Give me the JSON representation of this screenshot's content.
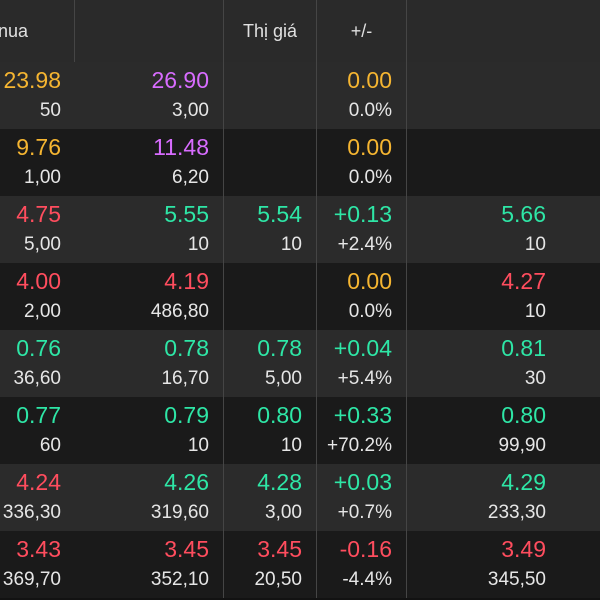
{
  "header": {
    "col_buy": "nua",
    "col_price": "Thị giá",
    "col_change": "+/-"
  },
  "colors": {
    "up": "#2ee6a6",
    "down": "#ff4d5e",
    "ref": "#f5b531",
    "ceil": "#d86cff",
    "neutral": "#e6e6e6",
    "header_bg": "#2a2a2a",
    "row_bg_a": "#2b2b2b",
    "row_bg_b": "#1a1a1a"
  },
  "rows": [
    {
      "buy1": {
        "price": "23.98",
        "vol": "50",
        "color": "#f5b531"
      },
      "sell1": {
        "price": "26.90",
        "vol": "3,00",
        "color": "#d86cff"
      },
      "match": {
        "price": "",
        "vol": "",
        "color": "#e6e6e6"
      },
      "change": {
        "value": "0.00",
        "pct": "0.0%",
        "color": "#f5b531"
      },
      "last": {
        "price": "",
        "vol": "",
        "color": "#e6e6e6"
      }
    },
    {
      "buy1": {
        "price": "9.76",
        "vol": "1,00",
        "color": "#f5b531"
      },
      "sell1": {
        "price": "11.48",
        "vol": "6,20",
        "color": "#d86cff"
      },
      "match": {
        "price": "",
        "vol": "",
        "color": "#e6e6e6"
      },
      "change": {
        "value": "0.00",
        "pct": "0.0%",
        "color": "#f5b531"
      },
      "last": {
        "price": "",
        "vol": "",
        "color": "#e6e6e6"
      }
    },
    {
      "buy1": {
        "price": "4.75",
        "vol": "5,00",
        "color": "#ff4d5e"
      },
      "sell1": {
        "price": "5.55",
        "vol": "10",
        "color": "#2ee6a6"
      },
      "match": {
        "price": "5.54",
        "vol": "10",
        "color": "#2ee6a6"
      },
      "change": {
        "value": "+0.13",
        "pct": "+2.4%",
        "color": "#2ee6a6"
      },
      "last": {
        "price": "5.66",
        "vol": "10",
        "color": "#2ee6a6"
      }
    },
    {
      "buy1": {
        "price": "4.00",
        "vol": "2,00",
        "color": "#ff4d5e"
      },
      "sell1": {
        "price": "4.19",
        "vol": "486,80",
        "color": "#ff4d5e"
      },
      "match": {
        "price": "",
        "vol": "",
        "color": "#e6e6e6"
      },
      "change": {
        "value": "0.00",
        "pct": "0.0%",
        "color": "#f5b531"
      },
      "last": {
        "price": "4.27",
        "vol": "10",
        "color": "#ff4d5e"
      }
    },
    {
      "buy1": {
        "price": "0.76",
        "vol": "36,60",
        "color": "#2ee6a6"
      },
      "sell1": {
        "price": "0.78",
        "vol": "16,70",
        "color": "#2ee6a6"
      },
      "match": {
        "price": "0.78",
        "vol": "5,00",
        "color": "#2ee6a6"
      },
      "change": {
        "value": "+0.04",
        "pct": "+5.4%",
        "color": "#2ee6a6"
      },
      "last": {
        "price": "0.81",
        "vol": "30",
        "color": "#2ee6a6"
      }
    },
    {
      "buy1": {
        "price": "0.77",
        "vol": "60",
        "color": "#2ee6a6"
      },
      "sell1": {
        "price": "0.79",
        "vol": "10",
        "color": "#2ee6a6"
      },
      "match": {
        "price": "0.80",
        "vol": "10",
        "color": "#2ee6a6"
      },
      "change": {
        "value": "+0.33",
        "pct": "+70.2%",
        "color": "#2ee6a6"
      },
      "last": {
        "price": "0.80",
        "vol": "99,90",
        "color": "#2ee6a6"
      }
    },
    {
      "buy1": {
        "price": "4.24",
        "vol": "336,30",
        "color": "#ff4d5e"
      },
      "sell1": {
        "price": "4.26",
        "vol": "319,60",
        "color": "#2ee6a6"
      },
      "match": {
        "price": "4.28",
        "vol": "3,00",
        "color": "#2ee6a6"
      },
      "change": {
        "value": "+0.03",
        "pct": "+0.7%",
        "color": "#2ee6a6"
      },
      "last": {
        "price": "4.29",
        "vol": "233,30",
        "color": "#2ee6a6"
      }
    },
    {
      "buy1": {
        "price": "3.43",
        "vol": "369,70",
        "color": "#ff4d5e"
      },
      "sell1": {
        "price": "3.45",
        "vol": "352,10",
        "color": "#ff4d5e"
      },
      "match": {
        "price": "3.45",
        "vol": "20,50",
        "color": "#ff4d5e"
      },
      "change": {
        "value": "-0.16",
        "pct": "-4.4%",
        "color": "#ff4d5e"
      },
      "last": {
        "price": "3.49",
        "vol": "345,50",
        "color": "#ff4d5e"
      }
    }
  ]
}
